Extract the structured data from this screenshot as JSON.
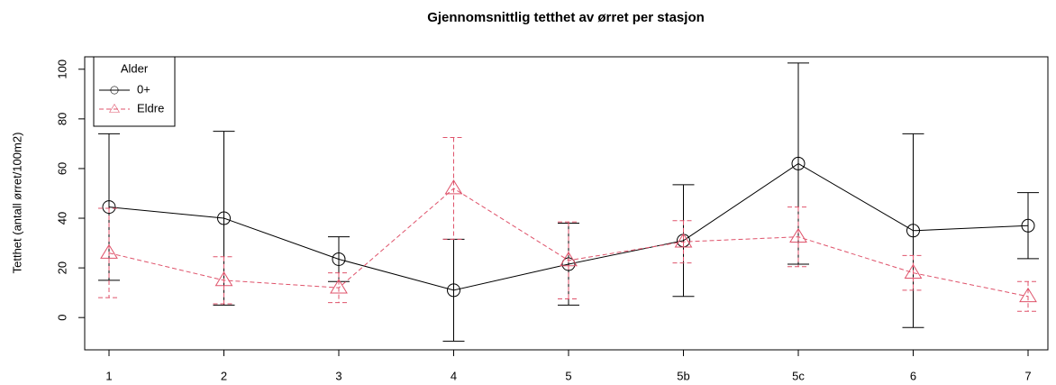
{
  "chart_data": {
    "type": "line",
    "title": "Gjennomsnittlig tetthet av ørret per stasjon",
    "y_label": "Tetthet (antall ørret/100m2)",
    "legend_title": "Alder",
    "legend_position": "top-left",
    "categories": [
      "1",
      "2",
      "3",
      "4",
      "5",
      "5b",
      "5c",
      "6",
      "7"
    ],
    "series": [
      {
        "name": "0+",
        "color": "#000000",
        "linestyle": "solid",
        "marker": "circle",
        "values": [
          44.5,
          40,
          23.5,
          11,
          21.5,
          31,
          62,
          35,
          37
        ],
        "errors": [
          29.5,
          35,
          9,
          20.5,
          16.5,
          22.5,
          40.5,
          39,
          13.3
        ]
      },
      {
        "name": "Eldre",
        "color": "#DF536B",
        "linestyle": "dashed",
        "marker": "triangle",
        "values": [
          26,
          15,
          12,
          52,
          23,
          30.5,
          32.5,
          18,
          8.5
        ],
        "errors": [
          18,
          9.5,
          6,
          20.5,
          15.5,
          8.5,
          12,
          7,
          6
        ]
      }
    ],
    "ylim": [
      -13,
      105
    ],
    "yticks": [
      0,
      20,
      40,
      60,
      80,
      100
    ]
  }
}
